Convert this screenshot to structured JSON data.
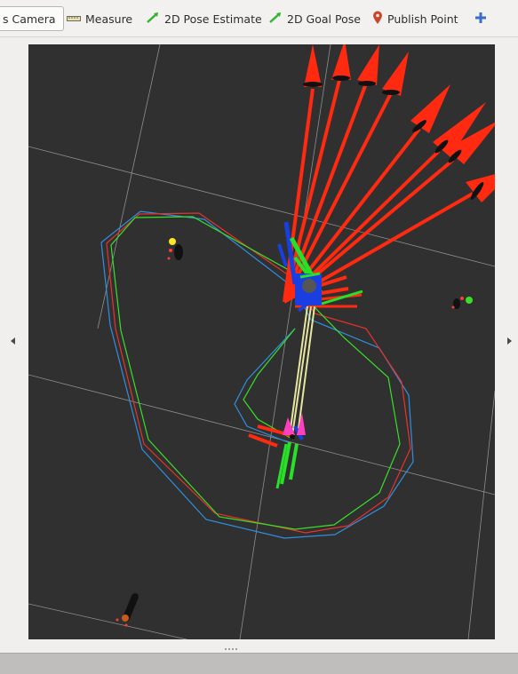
{
  "toolbar": {
    "tools": [
      {
        "label": "s Camera",
        "icon": "camera-icon",
        "active": true
      },
      {
        "label": "Measure",
        "icon": "ruler-icon",
        "active": false
      },
      {
        "label": "2D Pose Estimate",
        "icon": "green-arrow-icon",
        "active": false
      },
      {
        "label": "2D Goal Pose",
        "icon": "green-arrow-icon",
        "active": false
      },
      {
        "label": "Publish Point",
        "icon": "map-pin-icon",
        "active": false
      },
      {
        "label": "",
        "icon": "plus-icon",
        "active": false
      }
    ]
  },
  "viewport": {
    "background": "#303030",
    "grid_color": "#a0a0a0",
    "path_colors": {
      "red": "#e8322a",
      "green": "#38e028",
      "blue": "#2f8fe0"
    }
  }
}
